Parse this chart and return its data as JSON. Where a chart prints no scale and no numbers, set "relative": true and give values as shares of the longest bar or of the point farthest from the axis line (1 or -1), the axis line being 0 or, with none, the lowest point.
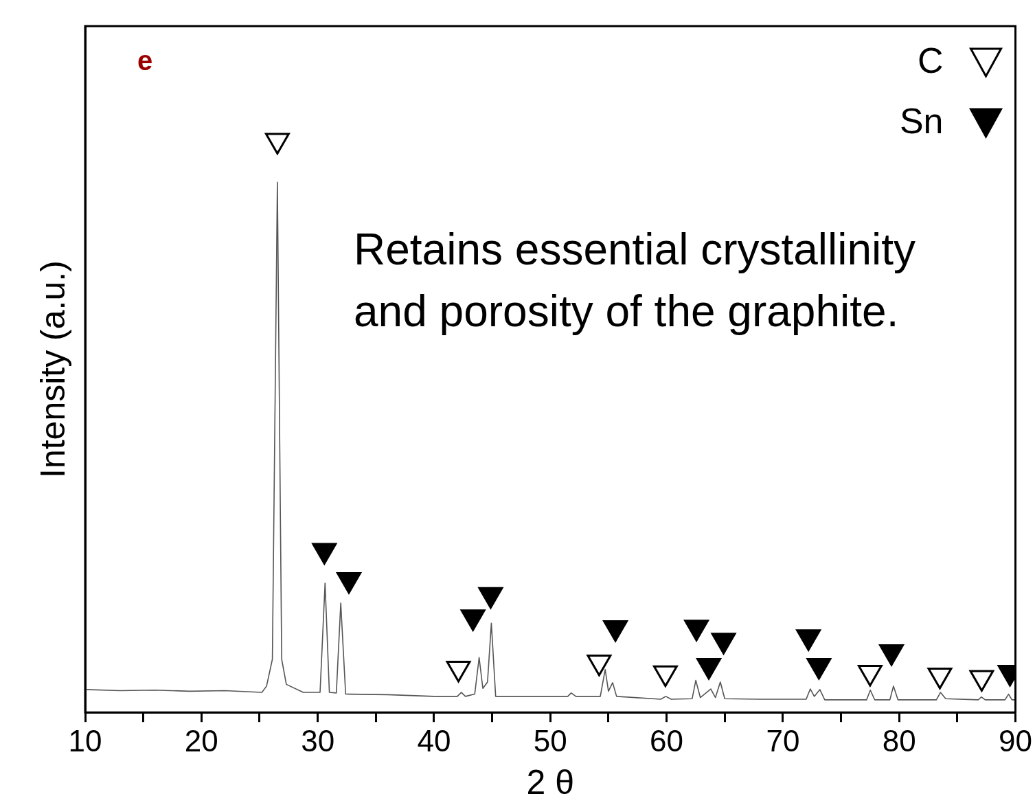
{
  "chart_data": {
    "type": "line",
    "relative": true,
    "xlabel": "2 θ",
    "ylabel": "Intensity (a.u.)",
    "xlim": [
      10,
      90
    ],
    "xticks": [
      10,
      {
        "value": 15,
        "label": null
      },
      20,
      {
        "value": 25,
        "label": null
      },
      30,
      {
        "value": 35,
        "label": null
      },
      40,
      {
        "value": 45,
        "label": null
      },
      50,
      {
        "value": 55,
        "label": null
      },
      60,
      {
        "value": 65,
        "label": null
      },
      70,
      {
        "value": 75,
        "label": null
      },
      80,
      {
        "value": 85,
        "label": null
      },
      90
    ],
    "tick_labels": "x",
    "grid": false,
    "legend": "top right",
    "annotations": [
      "e",
      "Retains essential crystallinity and porosity of the graphite."
    ],
    "series": [
      {
        "color": "#555555",
        "marker": "none",
        "x": [
          10,
          13,
          16,
          19,
          22,
          25.2,
          25.6,
          26.1,
          26.53,
          26.9,
          27.3,
          28.75,
          30.2,
          30.63,
          31.0,
          31.6,
          31.98,
          32.4,
          36,
          40,
          42.0,
          42.35,
          42.7,
          43.5,
          43.88,
          44.2,
          44.6,
          44.93,
          45.3,
          48,
          51.5,
          51.8,
          52.2,
          54.3,
          54.72,
          55.0,
          55.36,
          55.7,
          59.5,
          59.93,
          60.4,
          62.2,
          62.51,
          62.9,
          63.8,
          64.2,
          64.62,
          65.0,
          68,
          72.0,
          72.36,
          72.7,
          73.18,
          73.6,
          77.2,
          77.52,
          77.9,
          79.2,
          79.51,
          79.9,
          83.2,
          83.55,
          84.0,
          86.8,
          87.07,
          87.4,
          89.1,
          89.41,
          89.7,
          90
        ],
        "values": [
          0.04,
          0.038,
          0.039,
          0.037,
          0.038,
          0.035,
          0.046,
          0.093,
          0.927,
          0.093,
          0.049,
          0.035,
          0.035,
          0.226,
          0.035,
          0.034,
          0.191,
          0.032,
          0.031,
          0.028,
          0.028,
          0.035,
          0.028,
          0.032,
          0.096,
          0.042,
          0.053,
          0.156,
          0.028,
          0.028,
          0.028,
          0.034,
          0.028,
          0.028,
          0.075,
          0.037,
          0.052,
          0.028,
          0.023,
          0.028,
          0.023,
          0.024,
          0.056,
          0.026,
          0.041,
          0.026,
          0.053,
          0.024,
          0.023,
          0.023,
          0.041,
          0.028,
          0.04,
          0.022,
          0.022,
          0.039,
          0.022,
          0.022,
          0.046,
          0.022,
          0.022,
          0.035,
          0.024,
          0.022,
          0.027,
          0.022,
          0.022,
          0.032,
          0.022,
          0.022
        ]
      },
      {
        "type": "scatter",
        "name": "C",
        "color": "#ffffff",
        "marker": "triangle",
        "x": [
          26.53,
          42.1,
          54.2,
          59.9,
          77.5,
          83.5,
          87.1
        ],
        "values": [
          1.0,
          0.077,
          0.088,
          0.069,
          0.07,
          0.065,
          0.061
        ]
      },
      {
        "type": "scatter",
        "name": "Sn",
        "color": "#000000",
        "marker": "triangle",
        "x": [
          30.57,
          32.68,
          43.35,
          44.87,
          55.6,
          62.57,
          63.63,
          64.9,
          72.2,
          73.1,
          79.34,
          89.53
        ],
        "values": [
          0.283,
          0.232,
          0.167,
          0.206,
          0.148,
          0.149,
          0.082,
          0.126,
          0.132,
          0.082,
          0.106,
          0.07
        ]
      }
    ]
  }
}
